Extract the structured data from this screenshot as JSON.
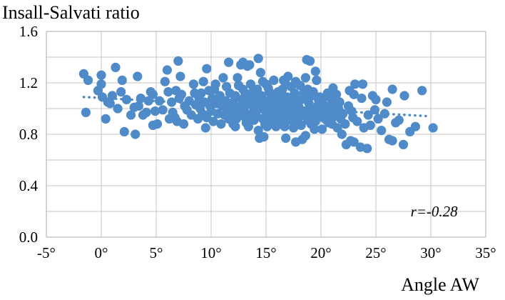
{
  "colors": {
    "point": "#4E8BC8",
    "trend": "#4E8BC8",
    "grid": "#C6C6C6",
    "border": "#ABABAB",
    "text": "#000000",
    "background": "#FFFFFF"
  },
  "chart_data": {
    "type": "scatter",
    "title": "Insall-Salvati ratio",
    "xlabel": "Angle AW",
    "ylabel": "Insall-Salvati ratio",
    "xlim": [
      -5,
      35
    ],
    "ylim": [
      0,
      1.6
    ],
    "x_ticks": [
      "-5°",
      "0°",
      "5°",
      "10°",
      "15°",
      "20°",
      "25°",
      "30°",
      "35°"
    ],
    "x_tick_values": [
      -5,
      0,
      5,
      10,
      15,
      20,
      25,
      30,
      35
    ],
    "y_ticks": [
      "0.0",
      "0.4",
      "0.8",
      "1.2",
      "1.6"
    ],
    "y_tick_values": [
      0,
      0.4,
      0.8,
      1.2,
      1.6
    ],
    "grid_step_y": 0.2,
    "grid_on": true,
    "legend": null,
    "annotation": {
      "text": "r=-0.28",
      "x": 30.3,
      "y": 0.2
    },
    "correlation": -0.28,
    "trendline": {
      "style": "dotted",
      "x1": -1.6,
      "y1": 1.09,
      "x2": 30.0,
      "y2": 0.94
    },
    "points": [
      [
        -1.6,
        1.27
      ],
      [
        -1.4,
        0.97
      ],
      [
        -1.2,
        1.22
      ],
      [
        -0.3,
        1.14
      ],
      [
        0,
        1.26
      ],
      [
        0,
        1.19
      ],
      [
        0.1,
        1.09
      ],
      [
        0.4,
        0.92
      ],
      [
        0.6,
        1.05
      ],
      [
        0.8,
        1.04
      ],
      [
        1.0,
        1.1
      ],
      [
        1.3,
        1.32
      ],
      [
        1.5,
        1.0
      ],
      [
        1.8,
        1.13
      ],
      [
        1.9,
        1.22
      ],
      [
        2.1,
        0.82
      ],
      [
        2.3,
        1.07
      ],
      [
        2.7,
        0.95
      ],
      [
        3.0,
        1.01
      ],
      [
        3.1,
        0.8
      ],
      [
        3.3,
        1.25
      ],
      [
        3.4,
        1.02
      ],
      [
        3.6,
        1.08
      ],
      [
        3.8,
        0.95
      ],
      [
        4.1,
        0.97
      ],
      [
        4.3,
        1.06
      ],
      [
        4.5,
        1.13
      ],
      [
        4.7,
        1.11
      ],
      [
        4.7,
        0.87
      ],
      [
        4.9,
        0.98
      ],
      [
        5.1,
        0.88
      ],
      [
        5.3,
        1.06
      ],
      [
        5.6,
        0.99
      ],
      [
        5.8,
        1.21
      ],
      [
        6.0,
        1.3
      ],
      [
        6.1,
        1.13
      ],
      [
        6.2,
        0.92
      ],
      [
        6.4,
        1.05
      ],
      [
        6.5,
        0.97
      ],
      [
        6.7,
        0.93
      ],
      [
        6.8,
        1.14
      ],
      [
        6.9,
        0.9
      ],
      [
        7.0,
        1.37
      ],
      [
        7.1,
        1.08
      ],
      [
        7.2,
        1.25
      ],
      [
        7.3,
        1.11
      ],
      [
        7.5,
        0.88
      ],
      [
        7.6,
        1.02
      ],
      [
        7.8,
        0.99
      ],
      [
        8.0,
        1.06
      ],
      [
        8.2,
        0.95
      ],
      [
        8.4,
        1.19
      ],
      [
        8.5,
        1.12
      ],
      [
        8.6,
        1.03
      ],
      [
        8.8,
        0.92
      ],
      [
        8.9,
        1.08
      ],
      [
        9.0,
        1.0
      ],
      [
        9.1,
        1.12
      ],
      [
        9.2,
        0.96
      ],
      [
        9.3,
        1.21
      ],
      [
        9.4,
        1.05
      ],
      [
        9.5,
        0.85
      ],
      [
        9.6,
        1.31
      ],
      [
        9.6,
        0.93
      ],
      [
        9.8,
        1.14
      ],
      [
        9.9,
        1.02
      ],
      [
        10.0,
        0.98
      ],
      [
        10.1,
        1.08
      ],
      [
        10.2,
        0.9
      ],
      [
        10.3,
        1.15
      ],
      [
        10.4,
        1.19
      ],
      [
        10.5,
        1.04
      ],
      [
        10.6,
        0.96
      ],
      [
        10.8,
        1.1
      ],
      [
        10.9,
        0.88
      ],
      [
        11.0,
        1.02
      ],
      [
        11.1,
        1.24
      ],
      [
        11.2,
        0.95
      ],
      [
        11.3,
        1.06
      ],
      [
        11.4,
        1.17
      ],
      [
        11.5,
        0.99
      ],
      [
        11.6,
        1.36
      ],
      [
        11.6,
        0.92
      ],
      [
        11.7,
        1.12
      ],
      [
        11.8,
        1.03
      ],
      [
        11.9,
        0.97
      ],
      [
        12.0,
        1.05
      ],
      [
        12.0,
        0.88
      ],
      [
        12.1,
        0.98
      ],
      [
        12.2,
        1.1
      ],
      [
        12.2,
        0.86
      ],
      [
        12.3,
        0.92
      ],
      [
        12.4,
        1.24
      ],
      [
        12.5,
        1.01
      ],
      [
        12.5,
        1.18
      ],
      [
        12.6,
        0.95
      ],
      [
        12.7,
        1.34
      ],
      [
        12.7,
        0.97
      ],
      [
        12.8,
        1.07
      ],
      [
        12.9,
        1.36
      ],
      [
        12.9,
        1.15
      ],
      [
        13.0,
        0.99
      ],
      [
        13.0,
        0.94
      ],
      [
        13.1,
        1.03
      ],
      [
        13.1,
        1.12
      ],
      [
        13.2,
        0.89
      ],
      [
        13.2,
        1.06
      ],
      [
        13.3,
        1.33
      ],
      [
        13.4,
        0.86
      ],
      [
        13.5,
        1.34
      ],
      [
        13.5,
        1.08
      ],
      [
        13.6,
        1.19
      ],
      [
        13.6,
        0.93
      ],
      [
        13.7,
        0.96
      ],
      [
        13.8,
        1.02
      ],
      [
        13.8,
        1.13
      ],
      [
        13.9,
        0.91
      ],
      [
        13.9,
        1.05
      ],
      [
        14.0,
        1.02
      ],
      [
        14.1,
        0.95
      ],
      [
        14.1,
        0.98
      ],
      [
        14.2,
        1.08
      ],
      [
        14.2,
        1.15
      ],
      [
        14.3,
        1.39
      ],
      [
        14.3,
        0.83
      ],
      [
        14.4,
        0.77
      ],
      [
        14.4,
        1.04
      ],
      [
        14.5,
        1.28
      ],
      [
        14.6,
        1.0
      ],
      [
        14.6,
        1.1
      ],
      [
        14.7,
        0.92
      ],
      [
        14.7,
        1.21
      ],
      [
        14.8,
        0.78
      ],
      [
        14.9,
        1.06
      ],
      [
        14.9,
        0.88
      ],
      [
        15.0,
        1.19
      ],
      [
        15.0,
        0.97
      ],
      [
        15.1,
        0.86
      ],
      [
        15.1,
        1.0
      ],
      [
        15.2,
        1.03
      ],
      [
        15.2,
        1.16
      ],
      [
        15.3,
        0.94
      ],
      [
        15.3,
        1.13
      ],
      [
        15.4,
        1.12
      ],
      [
        15.5,
        0.99
      ],
      [
        15.5,
        1.08
      ],
      [
        15.6,
        0.9
      ],
      [
        15.7,
        1.22
      ],
      [
        15.8,
        1.05
      ],
      [
        15.8,
        0.96
      ],
      [
        15.9,
        0.86
      ],
      [
        15.9,
        1.02
      ],
      [
        16.0,
        1.04
      ],
      [
        16.1,
        0.96
      ],
      [
        16.1,
        1.13
      ],
      [
        16.2,
        1.1
      ],
      [
        16.2,
        0.92
      ],
      [
        16.3,
        0.88
      ],
      [
        16.4,
        1.01
      ],
      [
        16.4,
        0.94
      ],
      [
        16.5,
        1.15
      ],
      [
        16.5,
        1.0
      ],
      [
        16.6,
        0.93
      ],
      [
        16.6,
        1.22
      ],
      [
        16.7,
        1.06
      ],
      [
        16.7,
        0.86
      ],
      [
        16.8,
        1.19
      ],
      [
        16.8,
        0.77
      ],
      [
        16.9,
        0.98
      ],
      [
        16.9,
        1.09
      ],
      [
        17.0,
        1.25
      ],
      [
        17.1,
        0.91
      ],
      [
        17.1,
        1.0
      ],
      [
        17.2,
        1.03
      ],
      [
        17.3,
        0.95
      ],
      [
        17.3,
        1.17
      ],
      [
        17.4,
        1.08
      ],
      [
        17.5,
        0.85
      ],
      [
        17.5,
        0.97
      ],
      [
        17.6,
        1.12
      ],
      [
        17.7,
        1.21
      ],
      [
        17.7,
        0.74
      ],
      [
        17.8,
        0.99
      ],
      [
        17.8,
        0.89
      ],
      [
        17.9,
        1.05
      ],
      [
        17.9,
        0.92
      ],
      [
        18.0,
        1.01
      ],
      [
        18.1,
        0.94
      ],
      [
        18.1,
        1.18
      ],
      [
        18.2,
        1.07
      ],
      [
        18.2,
        0.87
      ],
      [
        18.3,
        0.76
      ],
      [
        18.4,
        1.12
      ],
      [
        18.5,
        0.98
      ],
      [
        18.5,
        1.08
      ],
      [
        18.6,
        1.24
      ],
      [
        18.6,
        0.79
      ],
      [
        18.7,
        1.38
      ],
      [
        18.8,
        0.91
      ],
      [
        18.8,
        1.15
      ],
      [
        18.9,
        1.04
      ],
      [
        18.9,
        0.95
      ],
      [
        19.0,
        1.37
      ],
      [
        19.0,
        0.96
      ],
      [
        19.1,
        0.88
      ],
      [
        19.1,
        1.0
      ],
      [
        19.2,
        1.1
      ],
      [
        19.3,
        0.99
      ],
      [
        19.3,
        1.13
      ],
      [
        19.4,
        0.84
      ],
      [
        19.5,
        1.29
      ],
      [
        19.5,
        0.9
      ],
      [
        19.6,
        1.22
      ],
      [
        19.7,
        0.93
      ],
      [
        19.7,
        1.02
      ],
      [
        19.8,
        1.06
      ],
      [
        19.9,
        0.97
      ],
      [
        19.9,
        1.09
      ],
      [
        20.0,
        0.95
      ],
      [
        20.1,
        0.84
      ],
      [
        20.2,
        1.08
      ],
      [
        20.2,
        0.93
      ],
      [
        20.3,
        0.98
      ],
      [
        20.4,
        1.02
      ],
      [
        20.5,
        0.91
      ],
      [
        20.6,
        1.12
      ],
      [
        20.7,
        0.89
      ],
      [
        20.8,
        0.96
      ],
      [
        20.9,
        1.03
      ],
      [
        21.0,
        0.88
      ],
      [
        21.0,
        1.07
      ],
      [
        21.1,
        1.16
      ],
      [
        21.2,
        0.94
      ],
      [
        21.3,
        0.97
      ],
      [
        21.4,
        1.11
      ],
      [
        21.5,
        0.85
      ],
      [
        21.6,
        1.0
      ],
      [
        21.7,
        1.05
      ],
      [
        21.8,
        0.92
      ],
      [
        21.9,
        0.8
      ],
      [
        22.0,
        0.96
      ],
      [
        22.2,
        0.88
      ],
      [
        22.3,
        0.72
      ],
      [
        22.5,
        1.02
      ],
      [
        22.6,
        1.14
      ],
      [
        22.7,
        0.75
      ],
      [
        22.8,
        0.98
      ],
      [
        22.9,
        0.93
      ],
      [
        23.0,
        1.11
      ],
      [
        23.0,
        0.74
      ],
      [
        23.1,
        1.19
      ],
      [
        23.3,
        0.9
      ],
      [
        23.6,
        0.7
      ],
      [
        23.7,
        1.08
      ],
      [
        23.8,
        1.19
      ],
      [
        23.9,
        0.85
      ],
      [
        24.2,
        0.69
      ],
      [
        24.3,
        0.95
      ],
      [
        24.5,
        0.87
      ],
      [
        24.7,
        1.1
      ],
      [
        24.9,
        0.99
      ],
      [
        25.0,
        1.07
      ],
      [
        25.2,
        0.92
      ],
      [
        25.5,
        0.83
      ],
      [
        25.8,
        0.96
      ],
      [
        26.0,
        1.05
      ],
      [
        26.2,
        0.76
      ],
      [
        26.5,
        1.15
      ],
      [
        26.5,
        0.75
      ],
      [
        26.8,
        0.89
      ],
      [
        27.1,
        0.91
      ],
      [
        27.5,
        0.72
      ],
      [
        27.6,
        1.1
      ],
      [
        28.1,
        0.82
      ],
      [
        28.6,
        0.86
      ],
      [
        29.2,
        1.14
      ],
      [
        30.2,
        0.85
      ]
    ]
  }
}
